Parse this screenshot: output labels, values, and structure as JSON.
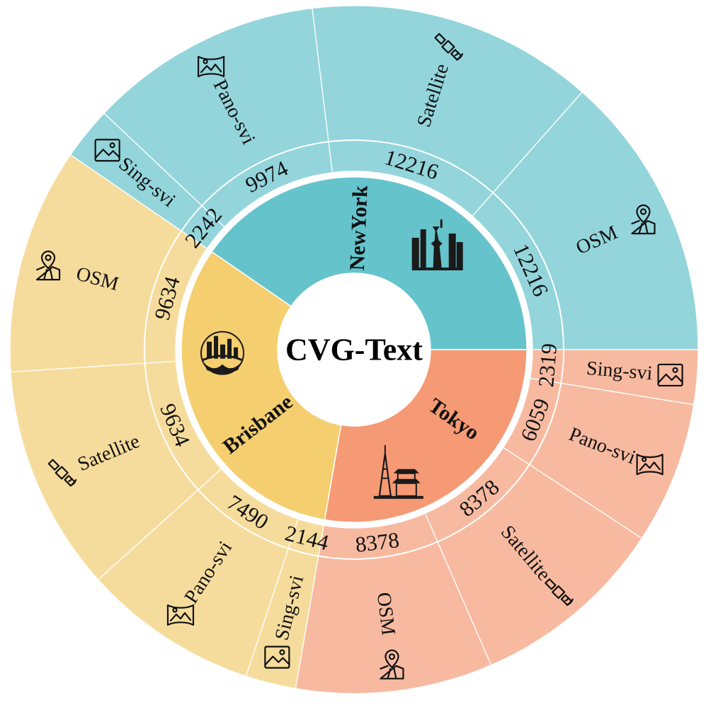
{
  "chart_data": {
    "type": "pie",
    "title": "CVG-Text",
    "cities": [
      {
        "name": "NewYork",
        "inner_color": "#65C3CC",
        "outer_color": "#93D5DB",
        "icon": "statue-of-liberty-skyline-icon",
        "items": [
          {
            "label": "OSM",
            "value": 12216,
            "icon": "map-pin-icon"
          },
          {
            "label": "Satellite",
            "value": 12216,
            "icon": "satellite-icon"
          },
          {
            "label": "Pano-svi",
            "value": 9974,
            "icon": "panorama-icon"
          },
          {
            "label": "Sing-svi",
            "value": 2242,
            "icon": "image-icon"
          }
        ]
      },
      {
        "name": "Brisbane",
        "inner_color": "#F5CE70",
        "outer_color": "#F6DC9C",
        "icon": "brisbane-skyline-icon",
        "items": [
          {
            "label": "OSM",
            "value": 9634,
            "icon": "map-pin-icon"
          },
          {
            "label": "Satellite",
            "value": 9634,
            "icon": "satellite-icon"
          },
          {
            "label": "Pano-svi",
            "value": 7490,
            "icon": "panorama-icon"
          },
          {
            "label": "Sing-svi",
            "value": 2144,
            "icon": "image-icon"
          }
        ]
      },
      {
        "name": "Tokyo",
        "inner_color": "#F59A74",
        "outer_color": "#F7BAA0",
        "icon": "tokyo-tower-pagoda-icon",
        "items": [
          {
            "label": "OSM",
            "value": 8378,
            "icon": "map-pin-icon"
          },
          {
            "label": "Satellite",
            "value": 8378,
            "icon": "satellite-icon"
          },
          {
            "label": "Pano-svi",
            "value": 6059,
            "icon": "panorama-icon"
          },
          {
            "label": "Sing-svi",
            "value": 2319,
            "icon": "image-icon"
          }
        ]
      }
    ]
  }
}
